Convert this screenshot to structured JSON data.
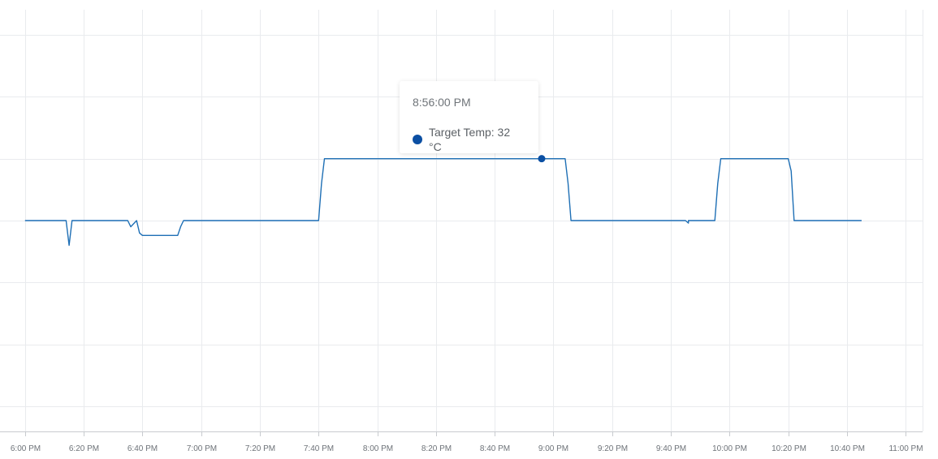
{
  "chart_data": {
    "type": "line",
    "series": [
      {
        "name": "Target Temp",
        "color": "#1e6fb5",
        "x": [
          "6:00 PM",
          "6:14 PM",
          "6:15 PM",
          "6:16 PM",
          "6:17 PM",
          "6:35 PM",
          "6:36 PM",
          "6:38 PM",
          "6:39 PM",
          "6:40 PM",
          "6:52 PM",
          "6:53 PM",
          "6:54 PM",
          "7:40 PM",
          "7:41 PM",
          "7:42 PM",
          "9:04 PM",
          "9:05 PM",
          "9:06 PM",
          "9:45 PM",
          "9:46 PM",
          "9:46 PM",
          "9:47 PM",
          "9:55 PM",
          "9:56 PM",
          "9:57 PM",
          "10:20 PM",
          "10:21 PM",
          "10:22 PM",
          "10:45 PM"
        ],
        "y": [
          31.5,
          31.5,
          31.3,
          31.5,
          31.5,
          31.5,
          31.45,
          31.5,
          31.4,
          31.38,
          31.38,
          31.45,
          31.5,
          31.5,
          31.8,
          32.0,
          32.0,
          31.8,
          31.5,
          31.5,
          31.48,
          31.5,
          31.5,
          31.5,
          31.8,
          32.0,
          32.0,
          31.9,
          31.5,
          31.5
        ]
      }
    ],
    "x_ticks": [
      "6:00 PM",
      "6:20 PM",
      "6:40 PM",
      "7:00 PM",
      "7:20 PM",
      "7:40 PM",
      "8:00 PM",
      "8:20 PM",
      "8:40 PM",
      "9:00 PM",
      "9:20 PM",
      "9:40 PM",
      "10:00 PM",
      "10:20 PM",
      "10:40 PM",
      "11:00 PM"
    ],
    "xlim": [
      "5:57 PM",
      "11:03 PM"
    ],
    "ylim": [
      30.0,
      33.0
    ],
    "y_gridlines": [
      30.0,
      30.5,
      31.0,
      31.5,
      32.0,
      32.5,
      33.0
    ],
    "grid": true,
    "title": "",
    "xlabel": "",
    "ylabel": "",
    "tooltip": {
      "time": "8:56:00 PM",
      "label": "Target Temp: 32 °C",
      "x": "8:56 PM",
      "y": 32.0
    }
  }
}
